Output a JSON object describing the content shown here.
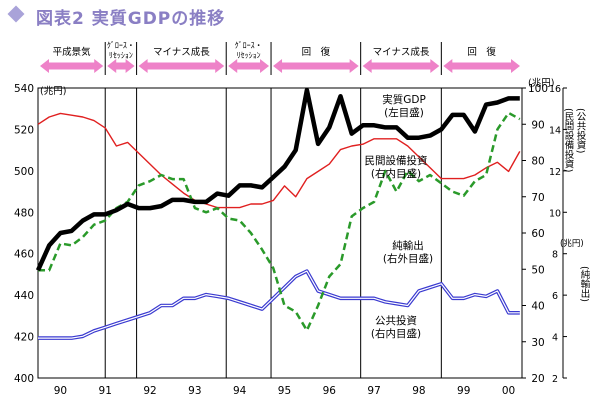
{
  "title": "図表2 実質GDPの推移",
  "colors": {
    "gdp": "#000000",
    "investment": "#e02020",
    "public": "#3a3ad0",
    "netexport": "#2a9a2a",
    "arrow": "#ee82c8",
    "title": "#8a7fc4"
  },
  "phases": [
    {
      "label": "平成景気",
      "from": 1989.5,
      "to": 1991.0
    },
    {
      "label": "ｸﾞﾛｰｽ・\nﾘｾｯｼｮﾝ",
      "from": 1991.0,
      "to": 1991.7
    },
    {
      "label": "マイナス成長",
      "from": 1991.7,
      "to": 1993.7
    },
    {
      "label": "ｸﾞﾛｰｽ・\nﾘｾｯｼｮﾝ",
      "from": 1993.7,
      "to": 1994.7
    },
    {
      "label": "回　復",
      "from": 1994.7,
      "to": 1996.7
    },
    {
      "label": "マイナス成長",
      "from": 1996.7,
      "to": 1998.5
    },
    {
      "label": "回　復",
      "from": 1998.5,
      "to": 2000.3
    }
  ],
  "chart_data": {
    "type": "line",
    "x_tick_labels": [
      "90",
      "91",
      "92",
      "93",
      "94",
      "95",
      "96",
      "97",
      "98",
      "99",
      "00"
    ],
    "x_range": [
      1989.5,
      2000.3
    ],
    "left_axis": {
      "unit": "(兆円)",
      "range": [
        400,
        540
      ],
      "ticks": [
        400,
        420,
        440,
        460,
        480,
        500,
        520,
        540
      ]
    },
    "right_axis_1": {
      "unit": "(兆円)",
      "label": "(公共投資)\n(民間設備投資)",
      "range": [
        20,
        100
      ],
      "ticks": [
        20,
        30,
        40,
        50,
        60,
        70,
        80,
        90,
        100
      ]
    },
    "right_axis_2": {
      "unit": "(兆円)",
      "label": "(純輸出)",
      "range": [
        2,
        16
      ],
      "ticks": [
        2,
        4,
        6,
        8,
        10,
        12,
        14,
        16
      ]
    },
    "vertical_dividers": [
      1991.0,
      1991.7,
      1993.7,
      1994.7,
      1996.7,
      1998.5
    ],
    "series": [
      {
        "name": "実質GDP\n(左目盛)",
        "axis": "left",
        "x": [
          1989.5,
          1989.75,
          1990.0,
          1990.25,
          1990.5,
          1990.75,
          1991.0,
          1991.25,
          1991.5,
          1991.75,
          1992.0,
          1992.25,
          1992.5,
          1992.75,
          1993.0,
          1993.25,
          1993.5,
          1993.75,
          1994.0,
          1994.25,
          1994.5,
          1994.75,
          1995.0,
          1995.25,
          1995.5,
          1995.75,
          1996.0,
          1996.25,
          1996.5,
          1996.75,
          1997.0,
          1997.25,
          1997.5,
          1997.75,
          1998.0,
          1998.25,
          1998.5,
          1998.75,
          1999.0,
          1999.25,
          1999.5,
          1999.75,
          2000.0,
          2000.25
        ],
        "values": [
          452,
          464,
          470,
          471,
          476,
          479,
          479,
          481,
          484,
          482,
          482,
          483,
          486,
          486,
          485,
          485,
          489,
          488,
          493,
          493,
          492,
          497,
          502,
          510,
          539,
          513,
          521,
          536,
          518,
          522,
          522,
          521,
          521,
          516,
          516,
          517,
          520,
          527,
          527,
          519,
          532,
          533,
          535,
          535
        ]
      },
      {
        "name": "民間設備投資\n(右内目盛)",
        "axis": "right_1",
        "x": [
          1989.5,
          1989.75,
          1990.0,
          1990.25,
          1990.5,
          1990.75,
          1991.0,
          1991.25,
          1991.5,
          1991.75,
          1992.0,
          1992.25,
          1992.5,
          1992.75,
          1993.0,
          1993.25,
          1993.5,
          1993.75,
          1994.0,
          1994.25,
          1994.5,
          1994.75,
          1995.0,
          1995.25,
          1995.5,
          1995.75,
          1996.0,
          1996.25,
          1996.5,
          1996.75,
          1997.0,
          1997.25,
          1997.5,
          1997.75,
          1998.0,
          1998.25,
          1998.5,
          1998.75,
          1999.0,
          1999.25,
          1999.5,
          1999.75,
          2000.0,
          2000.25
        ],
        "values": [
          90,
          92,
          93,
          92.5,
          92,
          91,
          89,
          84,
          85,
          82,
          79,
          76,
          73.5,
          71,
          69,
          68,
          67,
          67,
          67,
          68,
          68,
          69,
          73,
          70,
          75,
          77,
          79,
          83,
          84,
          84.5,
          86,
          86,
          86,
          84,
          81,
          78,
          75,
          75,
          75,
          76,
          78,
          79.5,
          77,
          82.5
        ]
      },
      {
        "name": "公共投資\n(右内目盛)",
        "axis": "right_1",
        "x": [
          1989.5,
          1989.75,
          1990.0,
          1990.25,
          1990.5,
          1990.75,
          1991.0,
          1991.25,
          1991.5,
          1991.75,
          1992.0,
          1992.25,
          1992.5,
          1992.75,
          1993.0,
          1993.25,
          1993.5,
          1993.75,
          1994.0,
          1994.25,
          1994.5,
          1994.75,
          1995.0,
          1995.25,
          1995.5,
          1995.75,
          1996.0,
          1996.25,
          1996.5,
          1996.75,
          1997.0,
          1997.25,
          1997.5,
          1997.75,
          1998.0,
          1998.25,
          1998.5,
          1998.75,
          1999.0,
          1999.25,
          1999.5,
          1999.75,
          2000.0,
          2000.25
        ],
        "values": [
          31,
          31,
          31,
          31,
          31.5,
          33,
          34,
          35,
          36,
          37,
          38,
          40,
          40,
          42,
          42,
          43,
          42.5,
          42,
          41,
          40,
          39,
          42,
          45,
          48,
          49.5,
          44,
          43,
          42,
          42,
          42,
          42,
          41,
          40.5,
          40,
          44,
          45,
          46,
          42,
          42,
          43,
          42.5,
          44,
          38,
          38
        ]
      },
      {
        "name": "純輸出\n(右外目盛)",
        "axis": "right_2",
        "x": [
          1989.5,
          1989.75,
          1990.0,
          1990.25,
          1990.5,
          1990.75,
          1991.0,
          1991.25,
          1991.5,
          1991.75,
          1992.0,
          1992.25,
          1992.5,
          1992.75,
          1993.0,
          1993.25,
          1993.5,
          1993.75,
          1994.0,
          1994.25,
          1994.5,
          1994.75,
          1995.0,
          1995.25,
          1995.5,
          1995.75,
          1996.0,
          1996.25,
          1996.5,
          1996.75,
          1997.0,
          1997.25,
          1997.5,
          1997.75,
          1998.0,
          1998.25,
          1998.5,
          1998.75,
          1999.0,
          1999.25,
          1999.5,
          1999.75,
          2000.0,
          2000.25
        ],
        "values": [
          7.2,
          7.2,
          8.5,
          8.4,
          8.8,
          9.4,
          9.6,
          10.2,
          10.5,
          11.3,
          11.5,
          11.8,
          11.6,
          11.6,
          10.2,
          10.0,
          10.2,
          9.7,
          9.6,
          9.0,
          8.2,
          7.3,
          5.5,
          5.2,
          4.3,
          5.5,
          6.9,
          7.5,
          9.8,
          10.2,
          10.5,
          12.0,
          11.0,
          12.0,
          11.5,
          11.8,
          11.4,
          11.0,
          10.8,
          11.5,
          11.8,
          14.0,
          14.8,
          14.5
        ]
      }
    ]
  }
}
